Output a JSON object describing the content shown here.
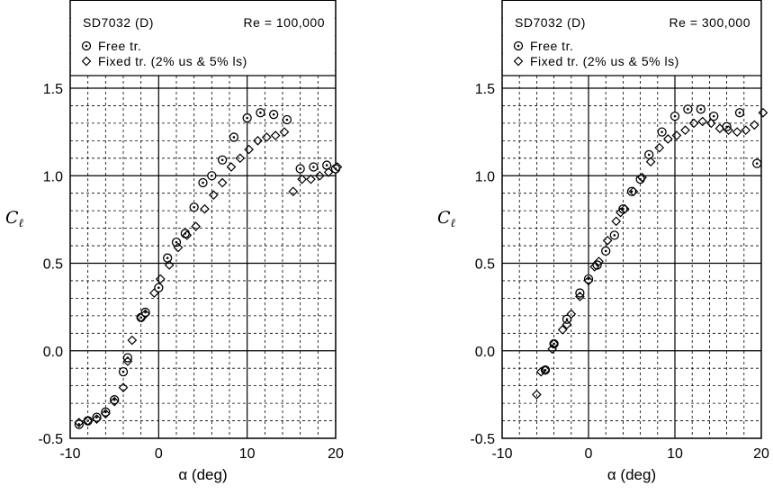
{
  "chart_data": [
    {
      "type": "scatter",
      "title": "SD7032 (D)",
      "subtitle": "Re = 100,000",
      "xlabel": "α (deg)",
      "ylabel_main": "C",
      "ylabel_sub": "ℓ",
      "xlim": [
        -10,
        20
      ],
      "ylim": [
        -0.5,
        1.5
      ],
      "xticks": [
        "-10",
        "0",
        "10",
        "20"
      ],
      "yticks": [
        "-0.5",
        "0.0",
        "0.5",
        "1.0",
        "1.5"
      ],
      "grid": true,
      "legend": "top-left",
      "series": [
        {
          "name": "Free tr.",
          "marker": "circle",
          "x": [
            -9,
            -8,
            -7,
            -6,
            -5,
            -4,
            -3.5,
            -2,
            -1.5,
            0,
            1,
            2,
            3,
            4,
            5,
            6,
            7.2,
            8.5,
            10,
            11.5,
            13,
            14.5,
            16,
            17.5,
            19,
            20
          ],
          "y": [
            -0.42,
            -0.4,
            -0.38,
            -0.35,
            -0.28,
            -0.12,
            -0.04,
            0.19,
            0.22,
            0.36,
            0.53,
            0.62,
            0.67,
            0.82,
            0.96,
            1.0,
            1.09,
            1.22,
            1.33,
            1.36,
            1.35,
            1.32,
            1.04,
            1.05,
            1.06,
            1.04
          ]
        },
        {
          "name": "Fixed tr. (2% us & 5% ls)",
          "marker": "diamond",
          "x": [
            -9,
            -8,
            -7,
            -6,
            -5,
            -4,
            -3.5,
            -3,
            -2,
            -1.5,
            -0.5,
            0.2,
            1.2,
            2.2,
            3.2,
            4.2,
            5.2,
            6.2,
            7.2,
            8.2,
            9.2,
            10.2,
            11.2,
            12.2,
            13.2,
            14.2,
            15.2,
            16.2,
            17.2,
            18.2,
            19.2,
            20.2
          ],
          "y": [
            -0.41,
            -0.4,
            -0.39,
            -0.36,
            -0.29,
            -0.21,
            -0.06,
            0.06,
            0.19,
            0.21,
            0.33,
            0.41,
            0.49,
            0.59,
            0.66,
            0.71,
            0.81,
            0.89,
            0.96,
            1.05,
            1.1,
            1.15,
            1.2,
            1.22,
            1.23,
            1.25,
            0.91,
            0.98,
            0.98,
            1.0,
            1.02,
            1.05
          ]
        }
      ]
    },
    {
      "type": "scatter",
      "title": "SD7032 (D)",
      "subtitle": "Re = 300,000",
      "xlabel": "α (deg)",
      "ylabel_main": "C",
      "ylabel_sub": "ℓ",
      "xlim": [
        -10,
        20
      ],
      "ylim": [
        -0.5,
        1.5
      ],
      "xticks": [
        "-10",
        "0",
        "10",
        "20"
      ],
      "yticks": [
        "-0.5",
        "0.0",
        "0.5",
        "1.0",
        "1.5"
      ],
      "grid": true,
      "legend": "top-left",
      "series": [
        {
          "name": "Free tr.",
          "marker": "circle",
          "x": [
            -5,
            -4,
            -2.5,
            -1,
            0,
            1,
            2,
            3,
            4,
            5,
            6,
            7,
            8.5,
            10,
            11.5,
            13,
            14.5,
            16,
            17.5,
            19.5
          ],
          "y": [
            -0.11,
            0.04,
            0.18,
            0.33,
            0.41,
            0.49,
            0.57,
            0.66,
            0.81,
            0.91,
            0.98,
            1.12,
            1.25,
            1.34,
            1.38,
            1.38,
            1.34,
            1.28,
            1.36,
            1.07
          ]
        },
        {
          "name": "Fixed tr. (2% us & 5% ls)",
          "marker": "diamond",
          "x": [
            -6,
            -5.5,
            -5,
            -4.2,
            -4,
            -3,
            -2.5,
            -2,
            -1,
            0,
            0.7,
            1.2,
            2.2,
            3.2,
            3.7,
            4.2,
            5.2,
            6.2,
            7.2,
            8.2,
            9.2,
            10.2,
            11.2,
            12.2,
            13.2,
            14.2,
            15.2,
            16.2,
            17.2,
            18.2,
            19.2,
            20.2
          ],
          "y": [
            -0.25,
            -0.12,
            -0.11,
            0.01,
            0.04,
            0.12,
            0.15,
            0.21,
            0.31,
            0.4,
            0.48,
            0.51,
            0.63,
            0.74,
            0.79,
            0.81,
            0.91,
            0.99,
            1.08,
            1.16,
            1.21,
            1.23,
            1.26,
            1.3,
            1.31,
            1.3,
            1.27,
            1.26,
            1.25,
            1.26,
            1.29,
            1.36
          ]
        }
      ]
    }
  ]
}
